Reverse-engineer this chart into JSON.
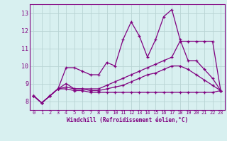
{
  "x": [
    0,
    1,
    2,
    3,
    4,
    5,
    6,
    7,
    8,
    9,
    10,
    11,
    12,
    13,
    14,
    15,
    16,
    17,
    18,
    19,
    20,
    21,
    22,
    23
  ],
  "line1": [
    8.3,
    7.9,
    8.3,
    8.7,
    9.9,
    9.9,
    9.7,
    9.5,
    9.5,
    10.2,
    10.0,
    11.5,
    12.5,
    11.7,
    10.5,
    11.5,
    12.8,
    13.2,
    11.5,
    10.3,
    10.3,
    9.8,
    9.3,
    8.6
  ],
  "line2": [
    8.3,
    7.9,
    8.3,
    8.7,
    9.0,
    8.7,
    8.7,
    8.7,
    8.7,
    8.9,
    9.1,
    9.3,
    9.5,
    9.7,
    9.9,
    10.1,
    10.3,
    10.5,
    11.4,
    11.4,
    11.4,
    11.4,
    11.4,
    8.6
  ],
  "line3": [
    8.3,
    7.9,
    8.3,
    8.7,
    8.8,
    8.7,
    8.7,
    8.6,
    8.6,
    8.7,
    8.8,
    8.9,
    9.1,
    9.3,
    9.5,
    9.6,
    9.8,
    10.0,
    10.0,
    9.8,
    9.5,
    9.2,
    8.9,
    8.6
  ],
  "line4": [
    8.3,
    7.9,
    8.3,
    8.7,
    8.7,
    8.6,
    8.6,
    8.5,
    8.5,
    8.5,
    8.5,
    8.5,
    8.5,
    8.5,
    8.5,
    8.5,
    8.5,
    8.5,
    8.5,
    8.5,
    8.5,
    8.5,
    8.5,
    8.6
  ],
  "line_color": "#800080",
  "bg_color": "#d8f0f0",
  "grid_color": "#b8d4d4",
  "xlabel": "Windchill (Refroidissement éolien,°C)",
  "ylim": [
    7.5,
    13.5
  ],
  "xlim": [
    -0.5,
    23.5
  ],
  "yticks": [
    8,
    9,
    10,
    11,
    12,
    13
  ],
  "xticks": [
    0,
    1,
    2,
    3,
    4,
    5,
    6,
    7,
    8,
    9,
    10,
    11,
    12,
    13,
    14,
    15,
    16,
    17,
    18,
    19,
    20,
    21,
    22,
    23
  ]
}
